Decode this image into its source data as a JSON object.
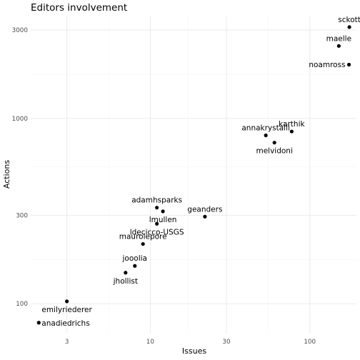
{
  "chart_data": {
    "type": "scatter",
    "title": "Editors involvement",
    "xlabel": "Issues",
    "ylabel": "Actions",
    "x_scale": "log10",
    "y_scale": "log10",
    "xlim": [
      1.78,
      196
    ],
    "ylim": [
      69,
      3550
    ],
    "x_ticks": [
      3,
      10,
      30,
      100
    ],
    "y_ticks": [
      100,
      300,
      1000,
      3000
    ],
    "grid": true,
    "points": [
      {
        "label": "sckott",
        "x": 177,
        "y": 3110,
        "label_pos": "above"
      },
      {
        "label": "maelle",
        "x": 152,
        "y": 2460,
        "label_pos": "above"
      },
      {
        "label": "noamross",
        "x": 176,
        "y": 1950,
        "label_pos": "left"
      },
      {
        "label": "karthik",
        "x": 77,
        "y": 850,
        "label_pos": "above"
      },
      {
        "label": "annakrystalli",
        "x": 53,
        "y": 810,
        "label_pos": "above"
      },
      {
        "label": "melvidoni",
        "x": 60,
        "y": 740,
        "label_pos": "below"
      },
      {
        "label": "adamhsparks",
        "x": 11,
        "y": 330,
        "label_pos": "above"
      },
      {
        "label": "lmullen",
        "x": 12,
        "y": 315,
        "label_pos": "below"
      },
      {
        "label": "ldecicco-USGS",
        "x": 11,
        "y": 270,
        "label_pos": "below"
      },
      {
        "label": "geanders",
        "x": 22,
        "y": 295,
        "label_pos": "above"
      },
      {
        "label": "maurolepore",
        "x": 9,
        "y": 210,
        "label_pos": "above"
      },
      {
        "label": "jooolia",
        "x": 8,
        "y": 160,
        "label_pos": "above"
      },
      {
        "label": "jhollist",
        "x": 7,
        "y": 147,
        "label_pos": "below"
      },
      {
        "label": "emilyriederer",
        "x": 3,
        "y": 103,
        "label_pos": "below"
      },
      {
        "label": "anadiedrichs",
        "x": 2,
        "y": 79,
        "label_pos": "right"
      }
    ]
  }
}
